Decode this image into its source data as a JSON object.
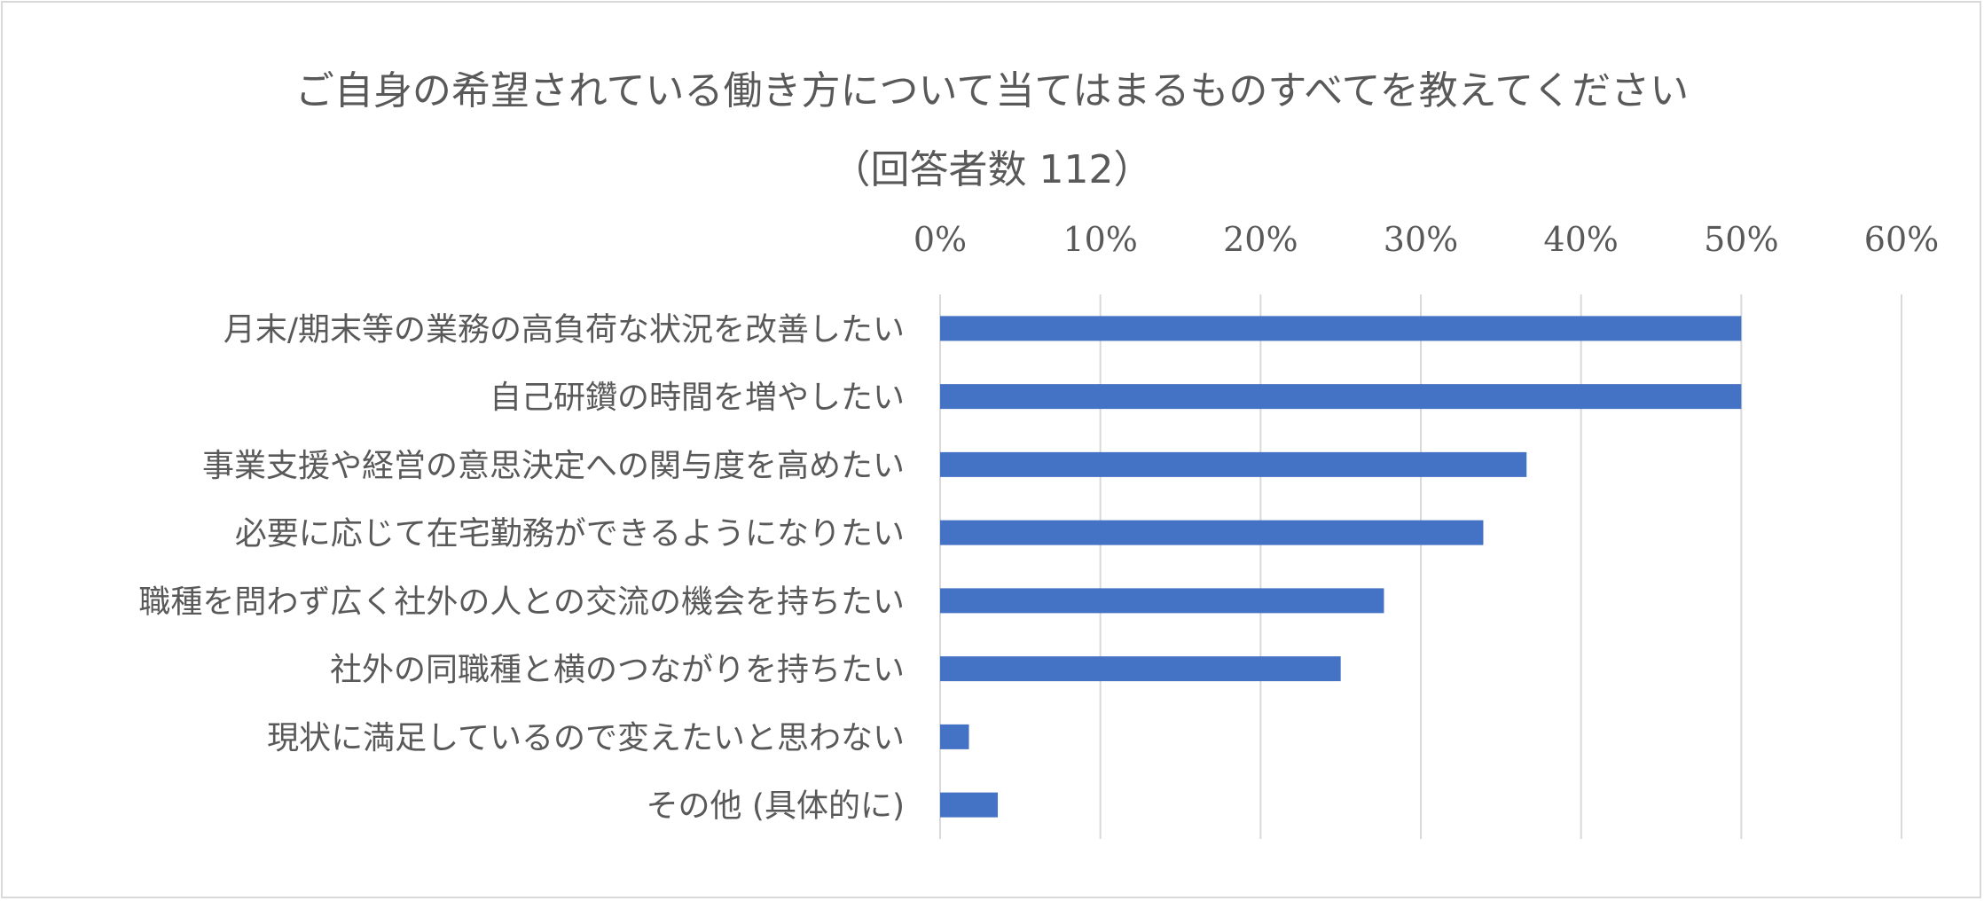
{
  "chart_data": {
    "type": "bar",
    "orientation": "horizontal",
    "title": "ご自身の希望されている働き方について当てはまるものすべてを教えてください",
    "subtitle": "（回答者数 112）",
    "categories": [
      "月末/期末等の業務の高負荷な状況を改善したい",
      "自己研鑽の時間を増やしたい",
      "事業支援や経営の意思決定への関与度を高めたい",
      "必要に応じて在宅勤務ができるようになりたい",
      "職種を問わず広く社外の人との交流の機会を持ちたい",
      "社外の同職種と横のつながりを持ちたい",
      "現状に満足しているので変えたいと思わない",
      "その他 (具体的に)"
    ],
    "values": [
      50.0,
      50.0,
      36.6,
      33.9,
      27.7,
      25.0,
      1.8,
      3.6
    ],
    "xlim": [
      0,
      60
    ],
    "x_ticks": [
      "0%",
      "10%",
      "20%",
      "30%",
      "40%",
      "50%",
      "60%"
    ],
    "x_axis_position": "top",
    "grid": true,
    "legend": "none",
    "bar_color": "#4472c4",
    "grid_color": "#d9d9d9",
    "text_color": "#595959"
  }
}
